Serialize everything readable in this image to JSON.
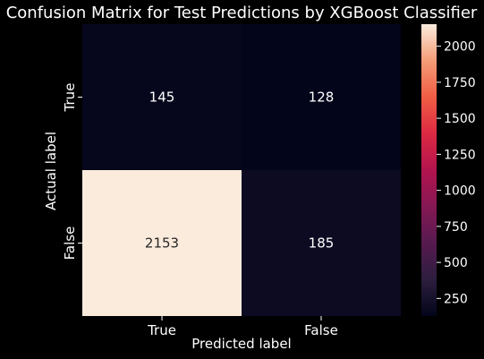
{
  "chart_data": {
    "type": "heatmap",
    "title": "Confusion Matrix for Test Predictions by XGBoost Classifier",
    "xlabel": "Predicted label",
    "ylabel": "Actual label",
    "x_categories": [
      "True",
      "False"
    ],
    "y_categories": [
      "True",
      "False"
    ],
    "values": [
      [
        145,
        128
      ],
      [
        2153,
        185
      ]
    ],
    "colorbar": {
      "ticks": [
        250,
        500,
        750,
        1000,
        1250,
        1500,
        1750,
        2000
      ],
      "min": 128,
      "max": 2153,
      "colormap": "rocket"
    },
    "colors": {
      "background": "#000000",
      "text": "#ffffff",
      "annotation_dark_cell": "#ffffff",
      "annotation_light_cell": "#262626"
    }
  }
}
